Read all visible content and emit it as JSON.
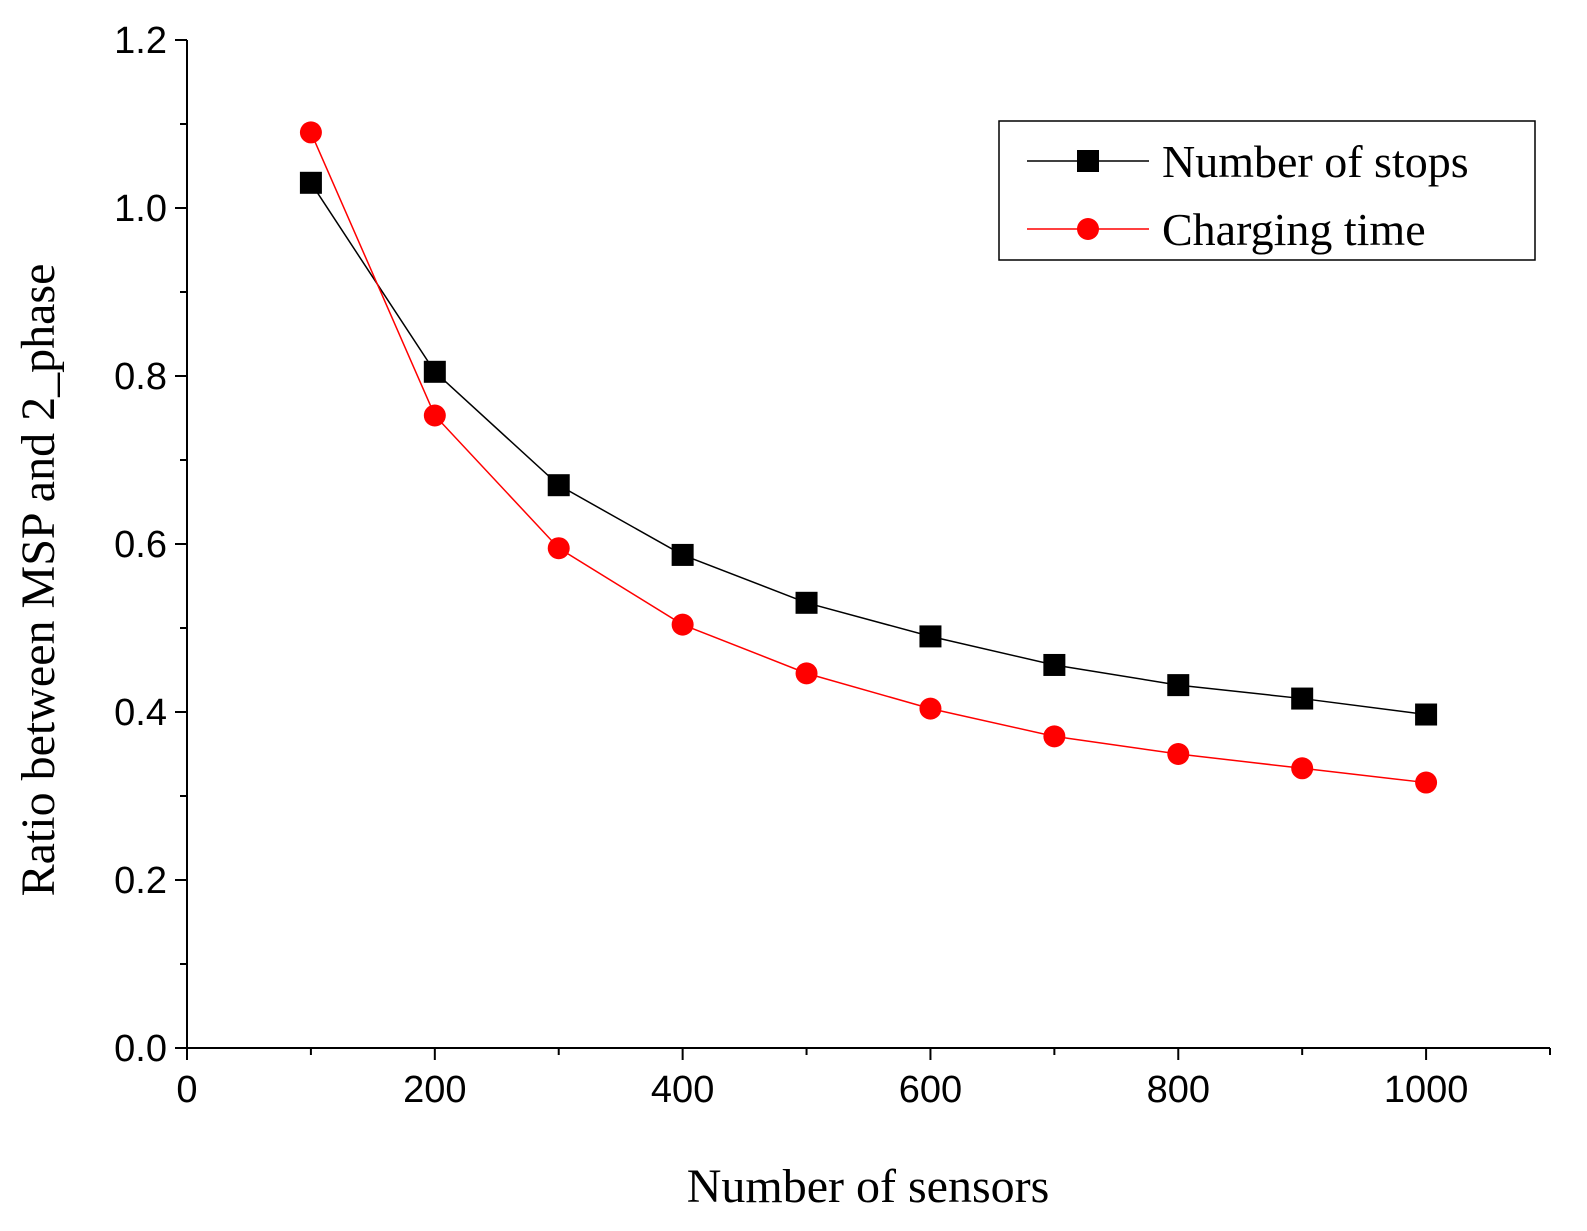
{
  "chart_data": {
    "type": "line",
    "title": "",
    "xlabel": "Number of sensors",
    "ylabel": "Ratio between MSP and 2_phase",
    "xlim": [
      0,
      1100
    ],
    "ylim": [
      0.0,
      1.2
    ],
    "x_ticks": [
      0,
      200,
      400,
      600,
      800,
      1000
    ],
    "x_tick_labels": [
      "0",
      "200",
      "400",
      "600",
      "800",
      "1000"
    ],
    "y_ticks": [
      0.0,
      0.2,
      0.4,
      0.6,
      0.8,
      1.0,
      1.2
    ],
    "y_tick_labels": [
      "0.0",
      "0.2",
      "0.4",
      "0.6",
      "0.8",
      "1.0",
      "1.2"
    ],
    "grid": false,
    "legend_position": "top-right",
    "x": [
      100,
      200,
      300,
      400,
      500,
      600,
      700,
      800,
      900,
      1000
    ],
    "series": [
      {
        "name": "Number of stops",
        "marker": "square",
        "color": "#000000",
        "values": [
          1.03,
          0.805,
          0.67,
          0.587,
          0.53,
          0.49,
          0.456,
          0.432,
          0.416,
          0.397
        ]
      },
      {
        "name": "Charging time",
        "marker": "circle",
        "color": "#ff0000",
        "values": [
          1.09,
          0.753,
          0.595,
          0.504,
          0.446,
          0.404,
          0.371,
          0.35,
          0.333,
          0.316
        ]
      }
    ]
  }
}
